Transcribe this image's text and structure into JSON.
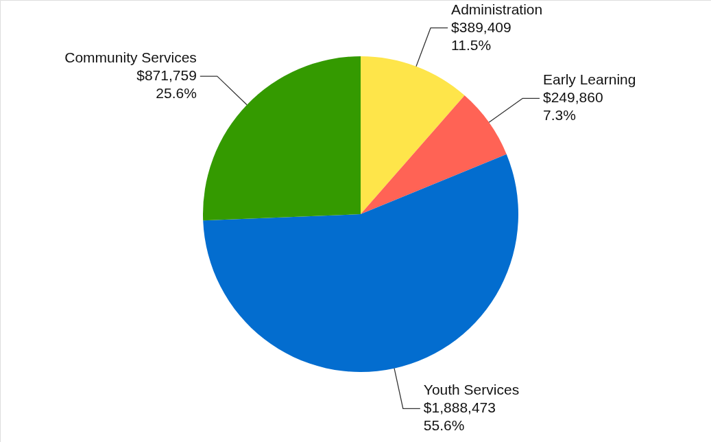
{
  "chart_data": {
    "type": "pie",
    "categories": [
      "Administration",
      "Early Learning",
      "Youth Services",
      "Community Services"
    ],
    "values": [
      389409,
      249860,
      1888473,
      871759
    ],
    "colors": [
      "#fee54a",
      "#ff6355",
      "#036dcf",
      "#349a00"
    ],
    "value_labels": [
      "$389,409\n11.5%",
      "$249,860\n7.3%",
      "$1,888,473\n55.6%",
      "$871,759\n25.6%"
    ]
  }
}
